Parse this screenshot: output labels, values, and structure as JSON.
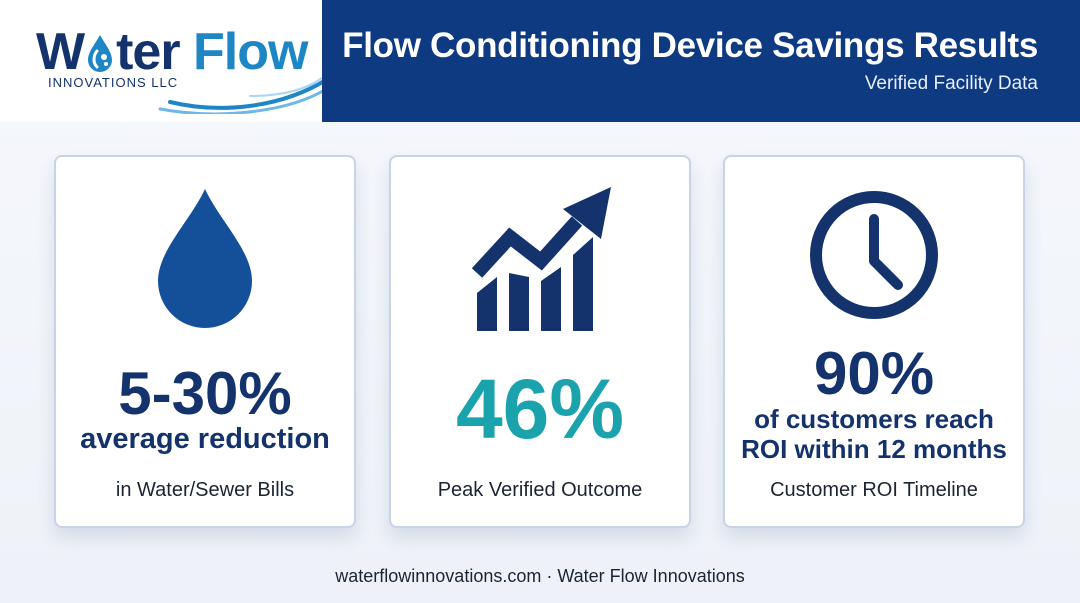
{
  "logo": {
    "name_part1": "W",
    "name_part2": "ter",
    "name_part3": "Flow",
    "tagline": "INNOVATIONS LLC",
    "icon": "water-drop-icon"
  },
  "header": {
    "title": "Flow Conditioning Device Savings Results",
    "subtitle": "Verified Facility Data"
  },
  "cards": [
    {
      "icon": "water-drop-icon",
      "value": "5-30%",
      "label": "average reduction",
      "caption": "in Water/Sewer Bills"
    },
    {
      "icon": "growth-chart-icon",
      "value": "46%",
      "caption": "Peak Verified Outcome"
    },
    {
      "icon": "clock-icon",
      "value": "90%",
      "label_line1": "of customers reach",
      "label_line2": "ROI within 12 months",
      "caption": "Customer ROI Timeline"
    }
  ],
  "footer": {
    "text": "waterflowinnovations.com · Water Flow Innovations"
  },
  "colors": {
    "navy": "#14336d",
    "banner": "#0e3a81",
    "teal_accent": "#1aa3ad",
    "light_blue": "#1f86c6"
  }
}
